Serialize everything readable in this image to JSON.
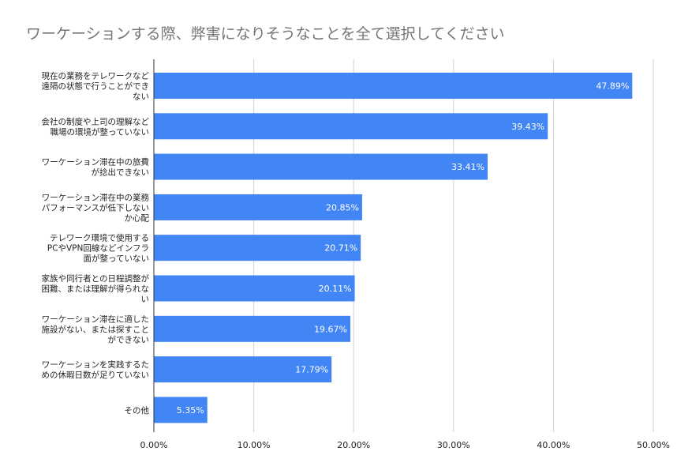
{
  "chart_data": {
    "type": "bar",
    "orientation": "horizontal",
    "title": "ワーケーションする際、弊害になりそうなことを全て選択してください",
    "xlabel": "",
    "ylabel": "",
    "xlim": [
      0,
      50
    ],
    "ticks": [
      "0.00%",
      "10.00%",
      "20.00%",
      "30.00%",
      "40.00%",
      "50.00%"
    ],
    "grid": true,
    "bar_color": "#4285f4",
    "categories": [
      [
        "現在の業務をテレワークなど",
        "遠隔の状態で行うことができ",
        "ない"
      ],
      [
        "会社の制度や上司の理解など",
        "職場の環境が整っていない"
      ],
      [
        "ワーケーション滞在中の旅費",
        "が捻出できない"
      ],
      [
        "ワーケーション滞在中の業務",
        "パフォーマンスが低下しない",
        "か心配"
      ],
      [
        "テレワーク環境で使用する",
        "PCやVPN回線などインフラ",
        "面が整っていない"
      ],
      [
        "家族や同行者との日程調整が",
        "困難、または理解が得られな",
        "い"
      ],
      [
        "ワーケーション滞在に適した",
        "施設がない、または探すこと",
        "ができない"
      ],
      [
        "ワーケーションを実践するた",
        "めの休暇日数が足りていない"
      ],
      [
        "その他"
      ]
    ],
    "values": [
      47.89,
      39.43,
      33.41,
      20.85,
      20.71,
      20.11,
      19.67,
      17.79,
      5.35
    ],
    "labels": [
      "47.89%",
      "39.43%",
      "33.41%",
      "20.85%",
      "20.71%",
      "20.11%",
      "19.67%",
      "17.79%",
      "5.35%"
    ]
  }
}
